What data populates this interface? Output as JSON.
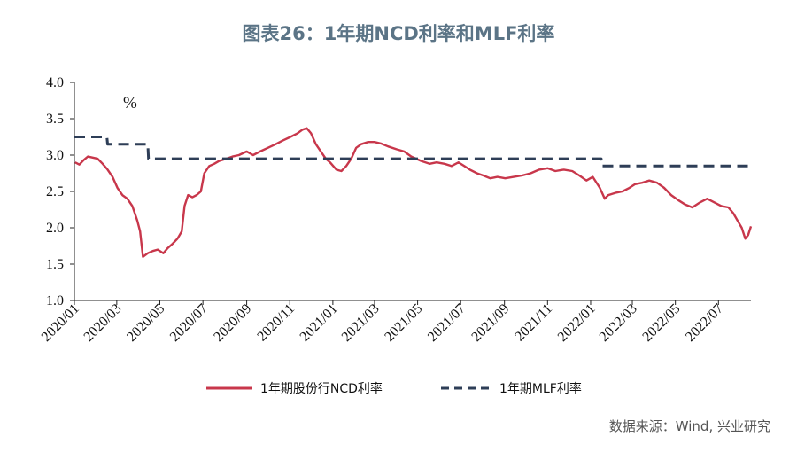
{
  "page": {
    "title": "图表26：1年期NCD利率和MLF利率",
    "source": "数据来源：Wind, 兴业研究"
  },
  "chart_data": {
    "type": "line",
    "unit_label": "%",
    "ylim": [
      1.0,
      4.0
    ],
    "y_ticks": [
      "4.0",
      "3.5",
      "3.0",
      "2.5",
      "2.0",
      "1.5",
      "1.0"
    ],
    "x_ticks": [
      "2020/01",
      "2020/03",
      "2020/05",
      "2020/07",
      "2020/09",
      "2020/11",
      "2021/01",
      "2021/03",
      "2021/05",
      "2021/07",
      "2021/09",
      "2021/11",
      "2022/01",
      "2022/03",
      "2022/05",
      "2022/07"
    ],
    "legend_position": "bottom",
    "series": [
      {
        "name": "1年期股份行NCD利率",
        "color": "#c8374b",
        "style": "solid",
        "points": [
          [
            "2020-01-02",
            2.9
          ],
          [
            "2020-01-08",
            2.87
          ],
          [
            "2020-01-14",
            2.93
          ],
          [
            "2020-01-20",
            2.98
          ],
          [
            "2020-02-03",
            2.95
          ],
          [
            "2020-02-10",
            2.88
          ],
          [
            "2020-02-17",
            2.8
          ],
          [
            "2020-02-24",
            2.7
          ],
          [
            "2020-03-02",
            2.55
          ],
          [
            "2020-03-09",
            2.45
          ],
          [
            "2020-03-16",
            2.4
          ],
          [
            "2020-03-23",
            2.3
          ],
          [
            "2020-03-30",
            2.1
          ],
          [
            "2020-04-03",
            1.95
          ],
          [
            "2020-04-07",
            1.6
          ],
          [
            "2020-04-14",
            1.65
          ],
          [
            "2020-04-21",
            1.68
          ],
          [
            "2020-04-28",
            1.7
          ],
          [
            "2020-05-06",
            1.65
          ],
          [
            "2020-05-12",
            1.72
          ],
          [
            "2020-05-19",
            1.78
          ],
          [
            "2020-05-26",
            1.85
          ],
          [
            "2020-06-01",
            1.95
          ],
          [
            "2020-06-05",
            2.3
          ],
          [
            "2020-06-10",
            2.45
          ],
          [
            "2020-06-16",
            2.42
          ],
          [
            "2020-06-22",
            2.45
          ],
          [
            "2020-06-28",
            2.5
          ],
          [
            "2020-07-03",
            2.75
          ],
          [
            "2020-07-10",
            2.85
          ],
          [
            "2020-07-17",
            2.88
          ],
          [
            "2020-07-24",
            2.92
          ],
          [
            "2020-08-03",
            2.95
          ],
          [
            "2020-08-12",
            2.98
          ],
          [
            "2020-08-21",
            3.0
          ],
          [
            "2020-09-01",
            3.05
          ],
          [
            "2020-09-10",
            3.0
          ],
          [
            "2020-09-20",
            3.05
          ],
          [
            "2020-10-01",
            3.1
          ],
          [
            "2020-10-12",
            3.15
          ],
          [
            "2020-10-22",
            3.2
          ],
          [
            "2020-11-02",
            3.25
          ],
          [
            "2020-11-12",
            3.3
          ],
          [
            "2020-11-19",
            3.35
          ],
          [
            "2020-11-25",
            3.37
          ],
          [
            "2020-12-01",
            3.3
          ],
          [
            "2020-12-08",
            3.15
          ],
          [
            "2020-12-15",
            3.05
          ],
          [
            "2020-12-22",
            2.95
          ],
          [
            "2020-12-28",
            2.9
          ],
          [
            "2021-01-06",
            2.8
          ],
          [
            "2021-01-13",
            2.78
          ],
          [
            "2021-01-20",
            2.85
          ],
          [
            "2021-01-27",
            2.95
          ],
          [
            "2021-02-03",
            3.1
          ],
          [
            "2021-02-10",
            3.15
          ],
          [
            "2021-02-20",
            3.18
          ],
          [
            "2021-03-01",
            3.18
          ],
          [
            "2021-03-10",
            3.16
          ],
          [
            "2021-03-20",
            3.12
          ],
          [
            "2021-04-01",
            3.08
          ],
          [
            "2021-04-12",
            3.05
          ],
          [
            "2021-04-22",
            2.98
          ],
          [
            "2021-05-06",
            2.92
          ],
          [
            "2021-05-18",
            2.88
          ],
          [
            "2021-05-28",
            2.9
          ],
          [
            "2021-06-08",
            2.88
          ],
          [
            "2021-06-18",
            2.85
          ],
          [
            "2021-06-28",
            2.9
          ],
          [
            "2021-07-06",
            2.85
          ],
          [
            "2021-07-14",
            2.8
          ],
          [
            "2021-07-24",
            2.75
          ],
          [
            "2021-08-02",
            2.72
          ],
          [
            "2021-08-12",
            2.68
          ],
          [
            "2021-08-22",
            2.7
          ],
          [
            "2021-09-02",
            2.68
          ],
          [
            "2021-09-14",
            2.7
          ],
          [
            "2021-09-26",
            2.72
          ],
          [
            "2021-10-08",
            2.75
          ],
          [
            "2021-10-20",
            2.8
          ],
          [
            "2021-11-01",
            2.82
          ],
          [
            "2021-11-12",
            2.78
          ],
          [
            "2021-11-24",
            2.8
          ],
          [
            "2021-12-06",
            2.78
          ],
          [
            "2021-12-16",
            2.72
          ],
          [
            "2021-12-26",
            2.65
          ],
          [
            "2022-01-04",
            2.7
          ],
          [
            "2022-01-14",
            2.55
          ],
          [
            "2022-01-21",
            2.4
          ],
          [
            "2022-01-26",
            2.45
          ],
          [
            "2022-02-05",
            2.48
          ],
          [
            "2022-02-15",
            2.5
          ],
          [
            "2022-02-25",
            2.55
          ],
          [
            "2022-03-05",
            2.6
          ],
          [
            "2022-03-15",
            2.62
          ],
          [
            "2022-03-25",
            2.65
          ],
          [
            "2022-04-05",
            2.62
          ],
          [
            "2022-04-15",
            2.55
          ],
          [
            "2022-04-25",
            2.45
          ],
          [
            "2022-05-05",
            2.38
          ],
          [
            "2022-05-15",
            2.32
          ],
          [
            "2022-05-25",
            2.28
          ],
          [
            "2022-06-05",
            2.35
          ],
          [
            "2022-06-15",
            2.4
          ],
          [
            "2022-06-25",
            2.35
          ],
          [
            "2022-07-05",
            2.3
          ],
          [
            "2022-07-15",
            2.28
          ],
          [
            "2022-07-22",
            2.2
          ],
          [
            "2022-07-28",
            2.1
          ],
          [
            "2022-08-03",
            2.0
          ],
          [
            "2022-08-08",
            1.85
          ],
          [
            "2022-08-12",
            1.9
          ],
          [
            "2022-08-16",
            2.02
          ]
        ]
      },
      {
        "name": "1年期MLF利率",
        "color": "#2e3e57",
        "style": "dashed",
        "points": [
          [
            "2020-01-01",
            3.25
          ],
          [
            "2020-02-16",
            3.25
          ],
          [
            "2020-02-17",
            3.15
          ],
          [
            "2020-04-14",
            3.15
          ],
          [
            "2020-04-15",
            2.95
          ],
          [
            "2022-01-16",
            2.95
          ],
          [
            "2022-01-17",
            2.85
          ],
          [
            "2022-08-16",
            2.85
          ]
        ]
      }
    ]
  }
}
